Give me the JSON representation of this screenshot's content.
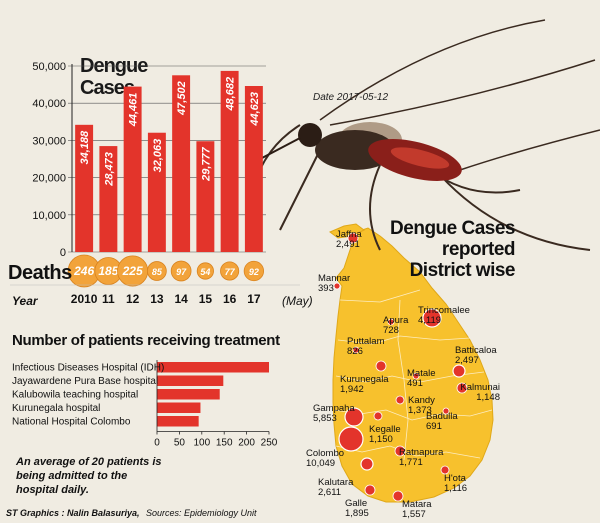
{
  "chart_data": [
    {
      "type": "bar",
      "title": "Dengue Cases",
      "categories": [
        "2010",
        "11",
        "12",
        "13",
        "14",
        "15",
        "16",
        "17"
      ],
      "values": [
        34188,
        28473,
        44461,
        32063,
        47502,
        29777,
        48682,
        44623
      ],
      "value_labels": [
        "34,188",
        "28,473",
        "44,461",
        "32,063",
        "47,502",
        "29,777",
        "48,682",
        "44,623"
      ],
      "y_ticks": [
        "0",
        "10,000",
        "20,000",
        "30,000",
        "40,000",
        "50,000"
      ],
      "ylim": [
        0,
        50000
      ],
      "deaths_label": "Deaths",
      "deaths": [
        246,
        185,
        225,
        85,
        97,
        54,
        77,
        92
      ],
      "year_label": "Year",
      "last_year_note": "(May)",
      "color": "#e3342b",
      "grid": true
    },
    {
      "type": "bar",
      "orientation": "horizontal",
      "title": "Number of patients receiving treatment",
      "categories": [
        "Infectious Diseases Hospital (IDH)",
        "Jayawardene Pura Base hospital",
        "Kalubowila teaching hospital",
        "Kurunegala hospital",
        "National Hospital Colombo"
      ],
      "values": [
        250,
        148,
        140,
        97,
        93
      ],
      "x_ticks": [
        "0",
        "50",
        "100",
        "150",
        "200",
        "250"
      ],
      "xlim": [
        0,
        250
      ],
      "color": "#e3342b"
    },
    {
      "type": "map",
      "title_lines": [
        "Dengue Cases",
        "reported",
        "District wise"
      ],
      "date": "Date 2017-05-12",
      "districts": [
        {
          "name": "Jaffna",
          "value": "2,491"
        },
        {
          "name": "Mannar",
          "value": "393"
        },
        {
          "name": "Apura",
          "value": "728"
        },
        {
          "name": "Trincomalee",
          "value": "4,119"
        },
        {
          "name": "Puttalam",
          "value": "826"
        },
        {
          "name": "Batticaloa",
          "value": "2,497"
        },
        {
          "name": "Kurunegala",
          "value": "1,942"
        },
        {
          "name": "Matale",
          "value": "491"
        },
        {
          "name": "Kalmunai",
          "value": "1,148"
        },
        {
          "name": "Kandy",
          "value": "1,373"
        },
        {
          "name": "Gampaha",
          "value": "5,853"
        },
        {
          "name": "Badulla",
          "value": "691"
        },
        {
          "name": "Kegalle",
          "value": "1,150"
        },
        {
          "name": "Colombo",
          "value": "10,049"
        },
        {
          "name": "Ratnapura",
          "value": "1,771"
        },
        {
          "name": "Kalutara",
          "value": "2,611"
        },
        {
          "name": "H'ota",
          "value": "1,116"
        },
        {
          "name": "Galle",
          "value": "1,895"
        },
        {
          "name": "Matara",
          "value": "1,557"
        }
      ]
    }
  ],
  "note": "An average of 20 patients is being admitted to the hospital daily.",
  "credit": "ST Graphics : Nalin Balasuriya,",
  "sources": "Sources:  Epidemiology Unit",
  "colors": {
    "background": "#f0ece2",
    "bar": "#e3342b",
    "death_circle": "#f2a33a",
    "map": "#f7c12d",
    "dot": "#e3342b"
  }
}
